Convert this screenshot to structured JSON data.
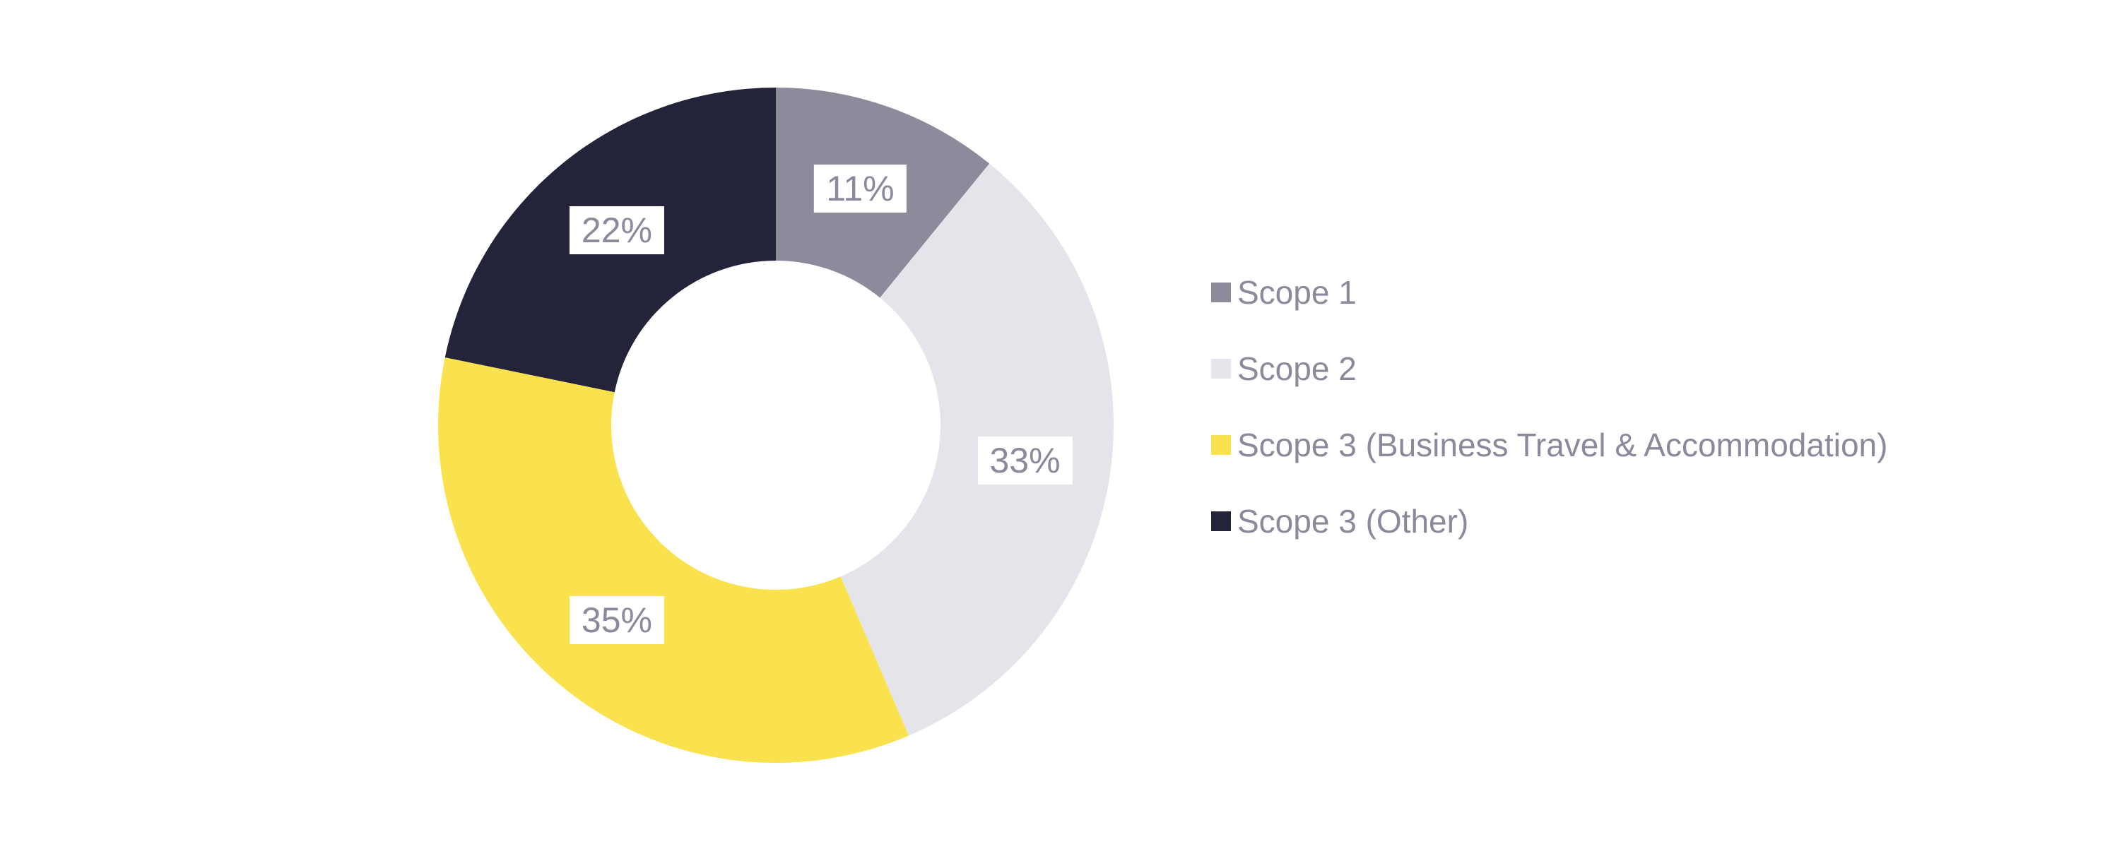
{
  "chart_data": {
    "type": "pie",
    "subtype": "donut",
    "title": "",
    "legend_position": "right",
    "start_angle_deg": 0,
    "direction": "clockwise",
    "segments": [
      {
        "label": "Scope 1",
        "value": 11,
        "display": "11%",
        "color": "#8B8B9C"
      },
      {
        "label": "Scope 2",
        "value": 33,
        "display": "33%",
        "color": "#E5E4EA"
      },
      {
        "label": "Scope 3 (Business Travel & Accommodation)",
        "value": 35,
        "display": "35%",
        "color": "#F9E24E"
      },
      {
        "label": "Scope 3 (Other)",
        "value": 22,
        "display": "22%",
        "color": "#23233A"
      }
    ]
  },
  "styles": {
    "background": "#FFFFFF",
    "label_chip_bg": "#FFFFFF",
    "label_text_color": "#8A8A9C",
    "legend_text_color": "#8A8A9C"
  }
}
